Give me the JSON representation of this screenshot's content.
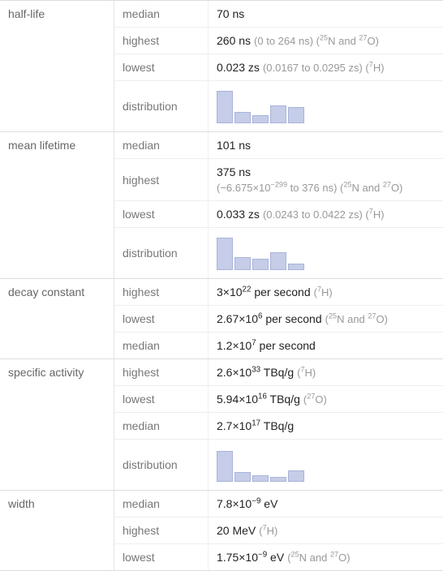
{
  "colors": {
    "bar_fill": "#c5cde8",
    "bar_border": "#aab4d8"
  },
  "groups": [
    {
      "name": "half-life",
      "label": "half-life",
      "rows": [
        {
          "name": "median",
          "sub": "median",
          "main": "70 ns",
          "extra": ""
        },
        {
          "name": "highest",
          "sub": "highest",
          "main": "260 ns",
          "extra": "(0 to 264 ns) (<sup>25</sup>N and <sup>27</sup>O)"
        },
        {
          "name": "lowest",
          "sub": "lowest",
          "main": "0.023 zs",
          "extra": "(0.0167 to 0.0295 zs) (<sup>7</sup>H)"
        },
        {
          "name": "distribution",
          "sub": "distribution",
          "type": "dist",
          "bars": [
            38,
            12,
            8,
            20,
            18
          ]
        }
      ]
    },
    {
      "name": "mean-lifetime",
      "label": "mean lifetime",
      "rows": [
        {
          "name": "median",
          "sub": "median",
          "main": "101 ns",
          "extra": ""
        },
        {
          "name": "highest",
          "sub": "highest",
          "main": "375 ns",
          "extra": "(−6.675×10<sup>−299</sup> to 376 ns) (<sup>25</sup>N and <sup>27</sup>O)"
        },
        {
          "name": "lowest",
          "sub": "lowest",
          "main": "0.033 zs",
          "extra": "(0.0243 to 0.0422 zs) (<sup>7</sup>H)"
        },
        {
          "name": "distribution",
          "sub": "distribution",
          "type": "dist",
          "bars": [
            38,
            14,
            12,
            20,
            6
          ]
        }
      ]
    },
    {
      "name": "decay-constant",
      "label": "decay constant",
      "rows": [
        {
          "name": "highest",
          "sub": "highest",
          "main": "3×10<sup>22</sup> per second",
          "extra": "(<sup>7</sup>H)"
        },
        {
          "name": "lowest",
          "sub": "lowest",
          "main": "2.67×10<sup>6</sup> per second",
          "extra": "(<sup>25</sup>N and <sup>27</sup>O)"
        },
        {
          "name": "median",
          "sub": "median",
          "main": "1.2×10<sup>7</sup> per second",
          "extra": ""
        }
      ]
    },
    {
      "name": "specific-activity",
      "label": "specific activity",
      "rows": [
        {
          "name": "highest",
          "sub": "highest",
          "main": "2.6×10<sup>33</sup> TBq/g",
          "extra": "(<sup>7</sup>H)"
        },
        {
          "name": "lowest",
          "sub": "lowest",
          "main": "5.94×10<sup>16</sup> TBq/g",
          "extra": "(<sup>27</sup>O)"
        },
        {
          "name": "median",
          "sub": "median",
          "main": "2.7×10<sup>17</sup> TBq/g",
          "extra": ""
        },
        {
          "name": "distribution",
          "sub": "distribution",
          "type": "dist",
          "bars": [
            36,
            10,
            6,
            4,
            12
          ]
        }
      ]
    },
    {
      "name": "width",
      "label": "width",
      "rows": [
        {
          "name": "median",
          "sub": "median",
          "main": "7.8×10<sup>−9</sup> eV",
          "extra": ""
        },
        {
          "name": "highest",
          "sub": "highest",
          "main": "20 MeV",
          "extra": "(<sup>7</sup>H)"
        },
        {
          "name": "lowest",
          "sub": "lowest",
          "main": "1.75×10<sup>−9</sup> eV",
          "extra": "(<sup>25</sup>N and <sup>27</sup>O)"
        }
      ]
    }
  ]
}
